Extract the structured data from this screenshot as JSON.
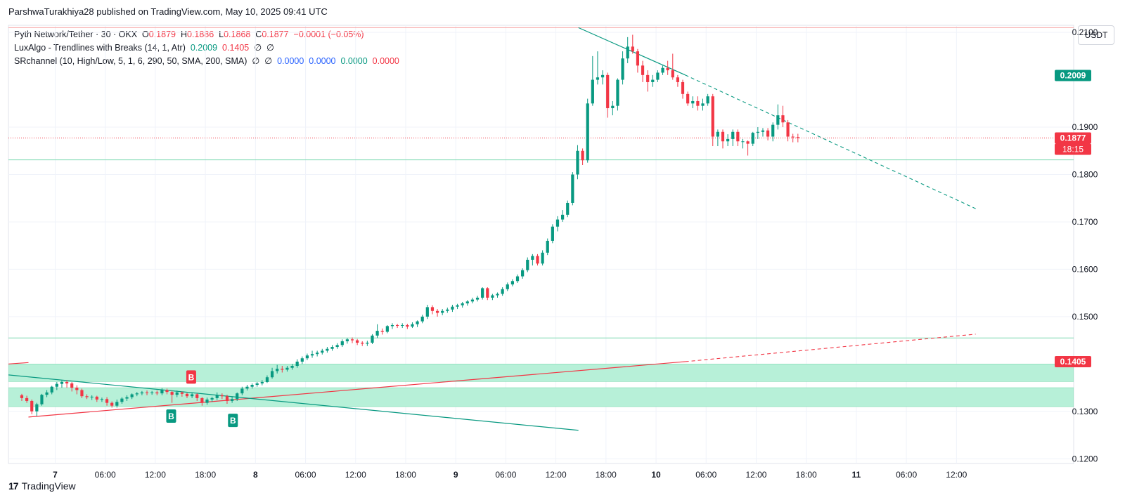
{
  "publisher": "ParshwaTurakhiya28 published on TradingView.com, May 10, 2025 09:41 UTC",
  "legend": {
    "symbol": "Pyth Network/Tether · 30 · OKX",
    "o_label": "O",
    "o_value": "0.1879",
    "h_label": "H",
    "h_value": "0.1886",
    "l_label": "L",
    "l_value": "0.1868",
    "c_label": "C",
    "c_value": "0.1877",
    "change": "−0.0001 (−0.05%)",
    "ind1_name": "LuxAlgo - Trendlines with Breaks (14, 1, Atr)",
    "ind1_v1": "0.2009",
    "ind1_v2": "0.1405",
    "ind1_e1": "∅",
    "ind1_e2": "∅",
    "ind2_name": "SRchannel (10, High/Low, 5, 1, 6, 290, 50, SMA, 200, SMA)",
    "ind2_e1": "∅",
    "ind2_e2": "∅",
    "ind2_v1": "0.0000",
    "ind2_v2": "0.0000",
    "ind2_v3": "0.0000",
    "ind2_v4": "0.0000"
  },
  "currency": "USDT",
  "footer": {
    "logo": "17",
    "brand": "TradingView"
  },
  "colors": {
    "up": "#089981",
    "down": "#f23645",
    "zone": "#b7f0d8",
    "zone_border": "#7dd8b0",
    "grid": "#f0f3fa",
    "text": "#131722"
  },
  "chart_data": {
    "type": "candlestick",
    "title": "Pyth Network/Tether · 30 · OKX",
    "ylabel": "USDT",
    "ylim": [
      0.119,
      0.2115
    ],
    "yticks": [
      "0.2100",
      "0.1900",
      "0.1800",
      "0.1700",
      "0.1600",
      "0.1500",
      "0.1300",
      "0.1200"
    ],
    "xlim": [
      -1.6,
      93.1
    ],
    "xticks": [
      {
        "label": "7",
        "t": 4,
        "bold": true
      },
      {
        "label": "06:00",
        "t": 10
      },
      {
        "label": "12:00",
        "t": 16
      },
      {
        "label": "18:00",
        "t": 22
      },
      {
        "label": "8",
        "t": 28,
        "bold": true
      },
      {
        "label": "06:00",
        "t": 34
      },
      {
        "label": "12:00",
        "t": 40
      },
      {
        "label": "18:00",
        "t": 46
      },
      {
        "label": "9",
        "t": 52,
        "bold": true
      },
      {
        "label": "06:00",
        "t": 58
      },
      {
        "label": "12:00",
        "t": 64
      },
      {
        "label": "18:00",
        "t": 70
      },
      {
        "label": "10",
        "t": 76,
        "bold": true
      },
      {
        "label": "06:00",
        "t": 82
      },
      {
        "label": "12:00",
        "t": 88
      },
      {
        "label": "18:00",
        "t": 94
      },
      {
        "label": "11",
        "t": 100,
        "bold": true
      },
      {
        "label": "06:00",
        "t": 106
      },
      {
        "label": "12:00",
        "t": 112
      }
    ],
    "price_labels": [
      {
        "text": "0.2009",
        "value": 0.2009,
        "color": "#089981"
      },
      {
        "text": "0.1877",
        "sub": "18:15",
        "value": 0.1877,
        "color": "#f23645"
      },
      {
        "text": "0.1405",
        "value": 0.1405,
        "color": "#f23645"
      }
    ],
    "levels": [
      {
        "value": 0.211,
        "color": "#f7a4a4"
      },
      {
        "value": 0.1831,
        "color": "#7dd8b0"
      },
      {
        "value": 0.1455,
        "color": "#7dd8b0"
      }
    ],
    "zones": [
      {
        "from": 0.14,
        "to": 0.1363
      },
      {
        "from": 0.135,
        "to": 0.131
      }
    ],
    "trendlines": [
      {
        "name": "resistance",
        "color": "#089981",
        "t1": 66.7,
        "v1": 0.211,
        "t2": 79.5,
        "v2": 0.201,
        "dash_to_t": 114.3,
        "dash_to_v": 0.1728
      },
      {
        "name": "support",
        "color": "#f23645",
        "t1": -1.6,
        "v1": 0.14,
        "t2": 0.8,
        "v2": 0.1403
      },
      {
        "name": "support2",
        "color": "#f23645",
        "t1": 0.8,
        "v1": 0.1288,
        "t2": 79.5,
        "v2": 0.1405,
        "dash_to_t": 114.3,
        "dash_to_v": 0.1463
      },
      {
        "name": "down-break",
        "color": "#089981",
        "t1": -1.6,
        "v1": 0.1377,
        "t2": 66.7,
        "v2": 0.126
      }
    ],
    "signals": [
      {
        "label": "B",
        "t": 17.9,
        "v": 0.1313,
        "color": "#089981",
        "pos": "below"
      },
      {
        "label": "B",
        "t": 20.3,
        "v": 0.1348,
        "color": "#f23645",
        "pos": "above"
      },
      {
        "label": "B",
        "t": 25.3,
        "v": 0.1304,
        "color": "#089981",
        "pos": "below"
      }
    ],
    "candles": [
      [
        0,
        0.1334,
        0.1328,
        0.1337,
        0.1322
      ],
      [
        0.6,
        0.1328,
        0.1322,
        0.1333,
        0.1318
      ],
      [
        1.2,
        0.1322,
        0.13,
        0.1325,
        0.1294
      ],
      [
        1.8,
        0.13,
        0.1315,
        0.1318,
        0.129
      ],
      [
        2.4,
        0.1315,
        0.1335,
        0.1337,
        0.1312
      ],
      [
        3,
        0.1335,
        0.134,
        0.1345,
        0.133
      ],
      [
        3.6,
        0.134,
        0.1352,
        0.1354,
        0.1336
      ],
      [
        4.2,
        0.1352,
        0.1358,
        0.1362,
        0.1345
      ],
      [
        4.8,
        0.1358,
        0.1362,
        0.1365,
        0.135
      ],
      [
        5.4,
        0.1362,
        0.1359,
        0.1366,
        0.135
      ],
      [
        6,
        0.1359,
        0.135,
        0.1362,
        0.1342
      ],
      [
        6.6,
        0.135,
        0.1345,
        0.1355,
        0.1336
      ],
      [
        7.2,
        0.1345,
        0.1332,
        0.1348,
        0.1328
      ],
      [
        7.8,
        0.1332,
        0.133,
        0.1336,
        0.1326
      ],
      [
        8.4,
        0.133,
        0.1331,
        0.1334,
        0.1324
      ],
      [
        9,
        0.1331,
        0.1325,
        0.1333,
        0.132
      ],
      [
        9.6,
        0.1325,
        0.1326,
        0.1329,
        0.132
      ],
      [
        10.2,
        0.1326,
        0.1318,
        0.133,
        0.1312
      ],
      [
        10.8,
        0.1318,
        0.1312,
        0.1321,
        0.1308
      ],
      [
        11.4,
        0.1312,
        0.132,
        0.1325,
        0.1308
      ],
      [
        12,
        0.132,
        0.1327,
        0.133,
        0.1316
      ],
      [
        12.6,
        0.1327,
        0.133,
        0.1334,
        0.1322
      ],
      [
        13.2,
        0.133,
        0.1336,
        0.1338,
        0.1326
      ],
      [
        13.8,
        0.1336,
        0.1338,
        0.1341,
        0.1332
      ],
      [
        14.4,
        0.1338,
        0.134,
        0.1343,
        0.1334
      ],
      [
        15,
        0.134,
        0.1339,
        0.1344,
        0.1334
      ],
      [
        15.6,
        0.1339,
        0.134,
        0.1343,
        0.1335
      ],
      [
        16.2,
        0.134,
        0.1338,
        0.1344,
        0.1334
      ],
      [
        16.8,
        0.1338,
        0.1345,
        0.1349,
        0.1334
      ],
      [
        17.4,
        0.1345,
        0.1341,
        0.1348,
        0.1336
      ],
      [
        18,
        0.1341,
        0.1335,
        0.1344,
        0.1318
      ],
      [
        18.6,
        0.1335,
        0.134,
        0.1344,
        0.133
      ],
      [
        19.2,
        0.134,
        0.1337,
        0.1342,
        0.1331
      ],
      [
        19.8,
        0.1337,
        0.1332,
        0.1339,
        0.1328
      ],
      [
        20.4,
        0.1332,
        0.1336,
        0.134,
        0.1328
      ],
      [
        21,
        0.1336,
        0.1328,
        0.1338,
        0.1322
      ],
      [
        21.6,
        0.1328,
        0.1318,
        0.133,
        0.1312
      ],
      [
        22.2,
        0.1318,
        0.1325,
        0.1329,
        0.1314
      ],
      [
        22.8,
        0.1325,
        0.1328,
        0.1331,
        0.132
      ],
      [
        23.4,
        0.1328,
        0.1334,
        0.134,
        0.1324
      ],
      [
        24,
        0.1334,
        0.1332,
        0.1338,
        0.1326
      ],
      [
        24.6,
        0.1332,
        0.1322,
        0.1335,
        0.1316
      ],
      [
        25.2,
        0.1322,
        0.1326,
        0.1332,
        0.1318
      ],
      [
        25.8,
        0.1326,
        0.1338,
        0.134,
        0.1322
      ],
      [
        26.4,
        0.1338,
        0.1348,
        0.1352,
        0.1334
      ],
      [
        27,
        0.1348,
        0.1352,
        0.1356,
        0.1344
      ],
      [
        27.6,
        0.1352,
        0.1356,
        0.1359,
        0.1348
      ],
      [
        28.2,
        0.1356,
        0.1359,
        0.1362,
        0.1352
      ],
      [
        28.8,
        0.1359,
        0.1362,
        0.1366,
        0.1355
      ],
      [
        29.4,
        0.1362,
        0.1372,
        0.1376,
        0.136
      ],
      [
        30,
        0.1372,
        0.1385,
        0.1392,
        0.1369
      ],
      [
        30.6,
        0.1385,
        0.139,
        0.1398,
        0.138
      ],
      [
        31.2,
        0.139,
        0.1388,
        0.1396,
        0.1382
      ],
      [
        31.8,
        0.1388,
        0.1392,
        0.1396,
        0.1384
      ],
      [
        32.4,
        0.1392,
        0.1396,
        0.14,
        0.1388
      ],
      [
        33,
        0.1396,
        0.1405,
        0.141,
        0.1392
      ],
      [
        33.6,
        0.1405,
        0.1412,
        0.1416,
        0.14
      ],
      [
        34.2,
        0.1412,
        0.1418,
        0.1422,
        0.1408
      ],
      [
        34.8,
        0.1418,
        0.1421,
        0.1428,
        0.1413
      ],
      [
        35.4,
        0.1421,
        0.1424,
        0.1428,
        0.1416
      ],
      [
        36,
        0.1424,
        0.1428,
        0.1432,
        0.142
      ],
      [
        36.6,
        0.1428,
        0.1432,
        0.1436,
        0.1424
      ],
      [
        37.2,
        0.1432,
        0.1436,
        0.144,
        0.1428
      ],
      [
        37.8,
        0.1436,
        0.144,
        0.1444,
        0.1432
      ],
      [
        38.4,
        0.144,
        0.1448,
        0.1452,
        0.1436
      ],
      [
        39,
        0.1448,
        0.1452,
        0.1455,
        0.1443
      ],
      [
        39.6,
        0.1452,
        0.145,
        0.1456,
        0.1444
      ],
      [
        40.2,
        0.145,
        0.1445,
        0.1453,
        0.144
      ],
      [
        40.8,
        0.1445,
        0.1443,
        0.1448,
        0.1438
      ],
      [
        41.4,
        0.1443,
        0.1445,
        0.1449,
        0.1438
      ],
      [
        42,
        0.1445,
        0.146,
        0.1463,
        0.1442
      ],
      [
        42.6,
        0.146,
        0.147,
        0.1484,
        0.1455
      ],
      [
        43.2,
        0.147,
        0.1468,
        0.1475,
        0.1462
      ],
      [
        43.8,
        0.1468,
        0.148,
        0.1482,
        0.1465
      ],
      [
        44.4,
        0.148,
        0.1482,
        0.1486,
        0.1474
      ],
      [
        45,
        0.1482,
        0.1481,
        0.1485,
        0.1476
      ],
      [
        45.6,
        0.1481,
        0.1482,
        0.1486,
        0.1476
      ],
      [
        46.2,
        0.1482,
        0.1479,
        0.1485,
        0.1474
      ],
      [
        46.8,
        0.1479,
        0.1484,
        0.1488,
        0.1476
      ],
      [
        47.4,
        0.1484,
        0.149,
        0.1492,
        0.1478
      ],
      [
        48,
        0.149,
        0.15,
        0.1504,
        0.1486
      ],
      [
        48.6,
        0.15,
        0.152,
        0.1525,
        0.1495
      ],
      [
        49.2,
        0.152,
        0.1512,
        0.1524,
        0.1505
      ],
      [
        49.8,
        0.1512,
        0.1508,
        0.1516,
        0.15
      ],
      [
        50.4,
        0.1508,
        0.1512,
        0.1516,
        0.1503
      ],
      [
        51,
        0.1512,
        0.1515,
        0.1519,
        0.1508
      ],
      [
        51.6,
        0.1515,
        0.1521,
        0.1525,
        0.151
      ],
      [
        52.2,
        0.1521,
        0.1524,
        0.1527,
        0.1516
      ],
      [
        52.8,
        0.1524,
        0.1528,
        0.1531,
        0.1519
      ],
      [
        53.4,
        0.1528,
        0.1532,
        0.1535,
        0.1523
      ],
      [
        54,
        0.1532,
        0.1536,
        0.154,
        0.1528
      ],
      [
        54.6,
        0.1536,
        0.154,
        0.1544,
        0.1532
      ],
      [
        55.2,
        0.154,
        0.156,
        0.1562,
        0.1536
      ],
      [
        55.8,
        0.156,
        0.154,
        0.1562,
        0.1535
      ],
      [
        56.4,
        0.154,
        0.1545,
        0.1548,
        0.1535
      ],
      [
        57,
        0.1545,
        0.1548,
        0.1551,
        0.154
      ],
      [
        57.6,
        0.1548,
        0.1558,
        0.1562,
        0.1544
      ],
      [
        58.2,
        0.1558,
        0.1568,
        0.1572,
        0.1554
      ],
      [
        58.8,
        0.1568,
        0.1575,
        0.1579,
        0.1564
      ],
      [
        59.4,
        0.1575,
        0.1585,
        0.1589,
        0.1571
      ],
      [
        60,
        0.1585,
        0.1598,
        0.1602,
        0.158
      ],
      [
        60.6,
        0.1598,
        0.162,
        0.1625,
        0.1594
      ],
      [
        61.2,
        0.162,
        0.1628,
        0.1632,
        0.1608
      ],
      [
        61.8,
        0.1628,
        0.1612,
        0.1632,
        0.1608
      ],
      [
        62.4,
        0.1612,
        0.1635,
        0.164,
        0.1608
      ],
      [
        63,
        0.1635,
        0.166,
        0.1665,
        0.163
      ],
      [
        63.6,
        0.166,
        0.169,
        0.1695,
        0.1655
      ],
      [
        64.2,
        0.169,
        0.1705,
        0.1712,
        0.168
      ],
      [
        64.8,
        0.1705,
        0.1715,
        0.1725,
        0.17
      ],
      [
        65.4,
        0.1715,
        0.174,
        0.1745,
        0.171
      ],
      [
        66,
        0.174,
        0.18,
        0.1805,
        0.1735
      ],
      [
        66.6,
        0.18,
        0.185,
        0.1862,
        0.179
      ],
      [
        67.2,
        0.185,
        0.183,
        0.1855,
        0.182
      ],
      [
        67.8,
        0.183,
        0.195,
        0.196,
        0.1825
      ],
      [
        68.4,
        0.195,
        0.2,
        0.205,
        0.1945
      ],
      [
        69,
        0.2,
        0.2005,
        0.206,
        0.199
      ],
      [
        69.6,
        0.2005,
        0.201,
        0.202,
        0.199
      ],
      [
        70.2,
        0.201,
        0.194,
        0.2015,
        0.192
      ],
      [
        70.8,
        0.194,
        0.1945,
        0.1955,
        0.1925
      ],
      [
        71.4,
        0.1945,
        0.2,
        0.2003,
        0.1935
      ],
      [
        72,
        0.2,
        0.2045,
        0.206,
        0.199
      ],
      [
        72.6,
        0.2045,
        0.207,
        0.209,
        0.2035
      ],
      [
        73.2,
        0.207,
        0.206,
        0.2095,
        0.2055
      ],
      [
        73.8,
        0.206,
        0.203,
        0.2065,
        0.2015
      ],
      [
        74.4,
        0.203,
        0.201,
        0.204,
        0.1995
      ],
      [
        75,
        0.201,
        0.1995,
        0.202,
        0.1975
      ],
      [
        75.6,
        0.1995,
        0.2,
        0.201,
        0.1985
      ],
      [
        76.2,
        0.2,
        0.2015,
        0.202,
        0.1995
      ],
      [
        76.8,
        0.2015,
        0.2025,
        0.203,
        0.201
      ],
      [
        77.4,
        0.2025,
        0.202,
        0.204,
        0.201
      ],
      [
        78,
        0.202,
        0.2005,
        0.2055,
        0.2
      ],
      [
        78.6,
        0.2005,
        0.1995,
        0.201,
        0.1985
      ],
      [
        79.2,
        0.1995,
        0.197,
        0.2,
        0.196
      ],
      [
        79.8,
        0.197,
        0.195,
        0.1975,
        0.1945
      ],
      [
        80.4,
        0.195,
        0.1955,
        0.1965,
        0.194
      ],
      [
        81,
        0.1955,
        0.1945,
        0.1965,
        0.1935
      ],
      [
        81.6,
        0.1945,
        0.195,
        0.196,
        0.1935
      ],
      [
        82.2,
        0.195,
        0.1965,
        0.197,
        0.1945
      ],
      [
        82.8,
        0.1965,
        0.188,
        0.197,
        0.186
      ],
      [
        83.4,
        0.188,
        0.189,
        0.1895,
        0.186
      ],
      [
        84,
        0.189,
        0.187,
        0.1895,
        0.1855
      ],
      [
        84.6,
        0.187,
        0.1875,
        0.1885,
        0.186
      ],
      [
        85.2,
        0.1875,
        0.189,
        0.1895,
        0.186
      ],
      [
        85.8,
        0.189,
        0.187,
        0.1895,
        0.186
      ],
      [
        86.4,
        0.187,
        0.187,
        0.1875,
        0.1855
      ],
      [
        87,
        0.187,
        0.1865,
        0.1872,
        0.184
      ],
      [
        87.6,
        0.1865,
        0.1888,
        0.189,
        0.186
      ],
      [
        88.2,
        0.1888,
        0.189,
        0.19,
        0.1875
      ],
      [
        88.8,
        0.189,
        0.1893,
        0.1898,
        0.188
      ],
      [
        89.4,
        0.1893,
        0.188,
        0.1898,
        0.1872
      ],
      [
        90,
        0.188,
        0.1905,
        0.191,
        0.187
      ],
      [
        90.6,
        0.1905,
        0.1925,
        0.1948,
        0.1895
      ],
      [
        91.2,
        0.1925,
        0.191,
        0.1945,
        0.19
      ],
      [
        91.8,
        0.191,
        0.188,
        0.1915,
        0.187
      ],
      [
        92.4,
        0.188,
        0.1879,
        0.1886,
        0.1868
      ],
      [
        93,
        0.1879,
        0.1877,
        0.1886,
        0.1868
      ]
    ]
  }
}
